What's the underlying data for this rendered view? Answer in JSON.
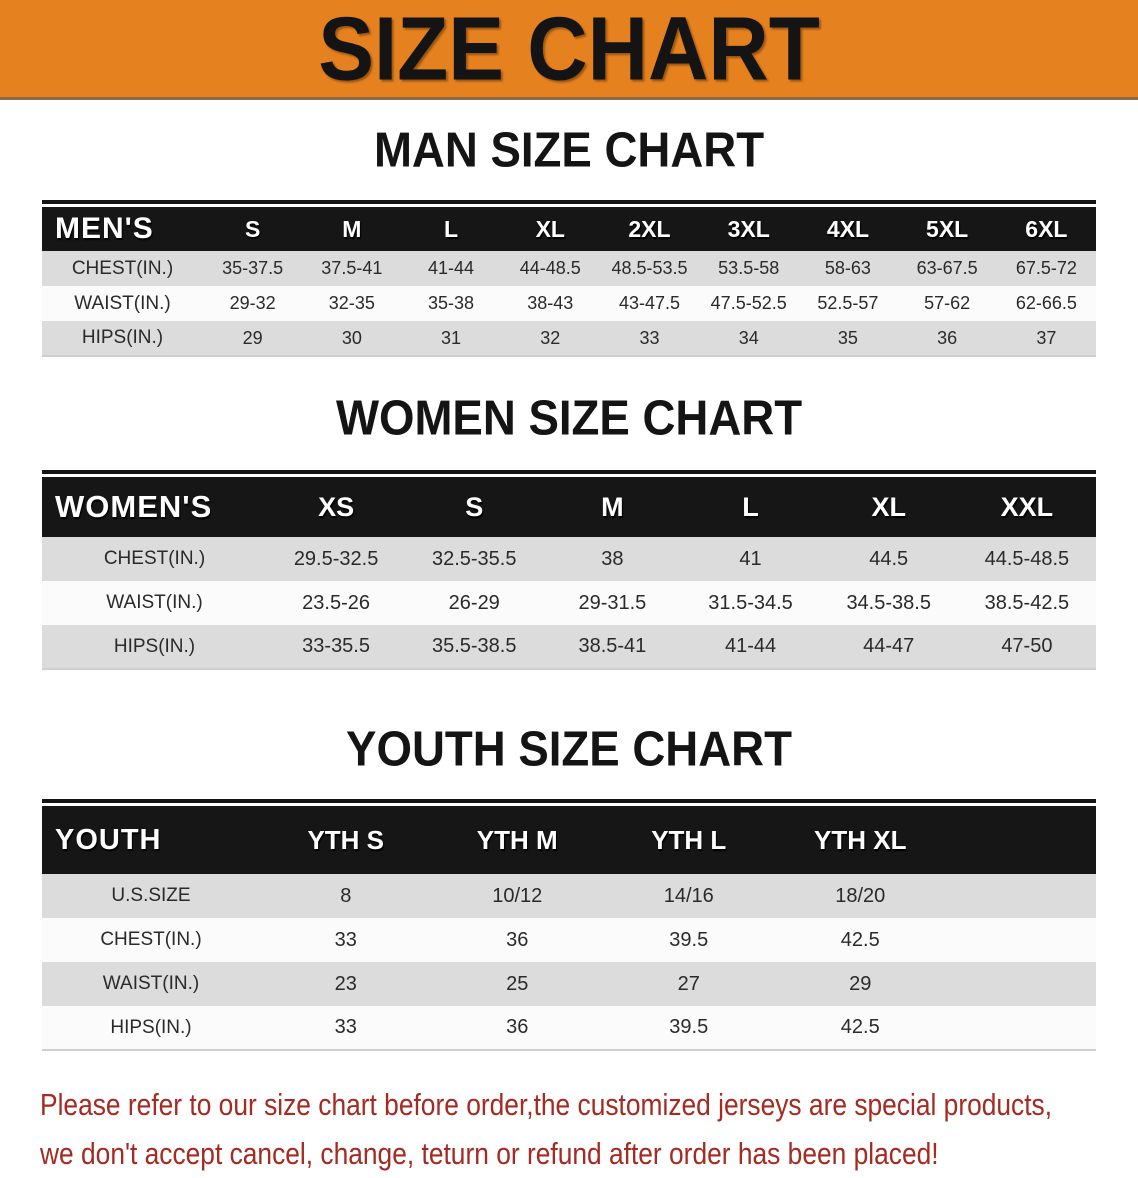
{
  "banner": {
    "title": "SIZE CHART"
  },
  "sections": [
    {
      "title": "MAN SIZE CHART",
      "group_label": "MEN'S",
      "columns": [
        "S",
        "M",
        "L",
        "XL",
        "2XL",
        "3XL",
        "4XL",
        "5XL",
        "6XL"
      ],
      "rows": [
        {
          "label": "CHEST(IN.)",
          "values": [
            "35-37.5",
            "37.5-41",
            "41-44",
            "44-48.5",
            "48.5-53.5",
            "53.5-58",
            "58-63",
            "63-67.5",
            "67.5-72"
          ]
        },
        {
          "label": "WAIST(IN.)",
          "values": [
            "29-32",
            "32-35",
            "35-38",
            "38-43",
            "43-47.5",
            "47.5-52.5",
            "52.5-57",
            "57-62",
            "62-66.5"
          ]
        },
        {
          "label": "HIPS(IN.)",
          "values": [
            "29",
            "30",
            "31",
            "32",
            "33",
            "34",
            "35",
            "36",
            "37"
          ]
        }
      ]
    },
    {
      "title": "WOMEN SIZE CHART",
      "group_label": "WOMEN'S",
      "columns": [
        "XS",
        "S",
        "M",
        "L",
        "XL",
        "XXL"
      ],
      "rows": [
        {
          "label": "CHEST(IN.)",
          "values": [
            "29.5-32.5",
            "32.5-35.5",
            "38",
            "41",
            "44.5",
            "44.5-48.5"
          ]
        },
        {
          "label": "WAIST(IN.)",
          "values": [
            "23.5-26",
            "26-29",
            "29-31.5",
            "31.5-34.5",
            "34.5-38.5",
            "38.5-42.5"
          ]
        },
        {
          "label": "HIPS(IN.)",
          "values": [
            "33-35.5",
            "35.5-38.5",
            "38.5-41",
            "41-44",
            "44-47",
            "47-50"
          ]
        }
      ]
    },
    {
      "title": "YOUTH SIZE CHART",
      "group_label": "YOUTH",
      "columns": [
        "YTH S",
        "YTH M",
        "YTH L",
        "YTH XL"
      ],
      "rows": [
        {
          "label": "U.S.SIZE",
          "values": [
            "8",
            "10/12",
            "14/16",
            "18/20"
          ]
        },
        {
          "label": "CHEST(IN.)",
          "values": [
            "33",
            "36",
            "39.5",
            "42.5"
          ]
        },
        {
          "label": "WAIST(IN.)",
          "values": [
            "23",
            "25",
            "27",
            "29"
          ]
        },
        {
          "label": "HIPS(IN.)",
          "values": [
            "33",
            "36",
            "39.5",
            "42.5"
          ]
        }
      ]
    }
  ],
  "footer": {
    "line1": "Please refer to our size chart before order,the customized jerseys are special products,",
    "line2": "we don't accept cancel, change, teturn or refund after order has been placed!"
  },
  "colors": {
    "banner_bg": "#e5811e",
    "table_header_bg": "#161616",
    "row_shaded": "#dcdcdc",
    "row_plain": "#fbfbfb",
    "footer_text": "#a52a21",
    "title_text": "#141414"
  }
}
